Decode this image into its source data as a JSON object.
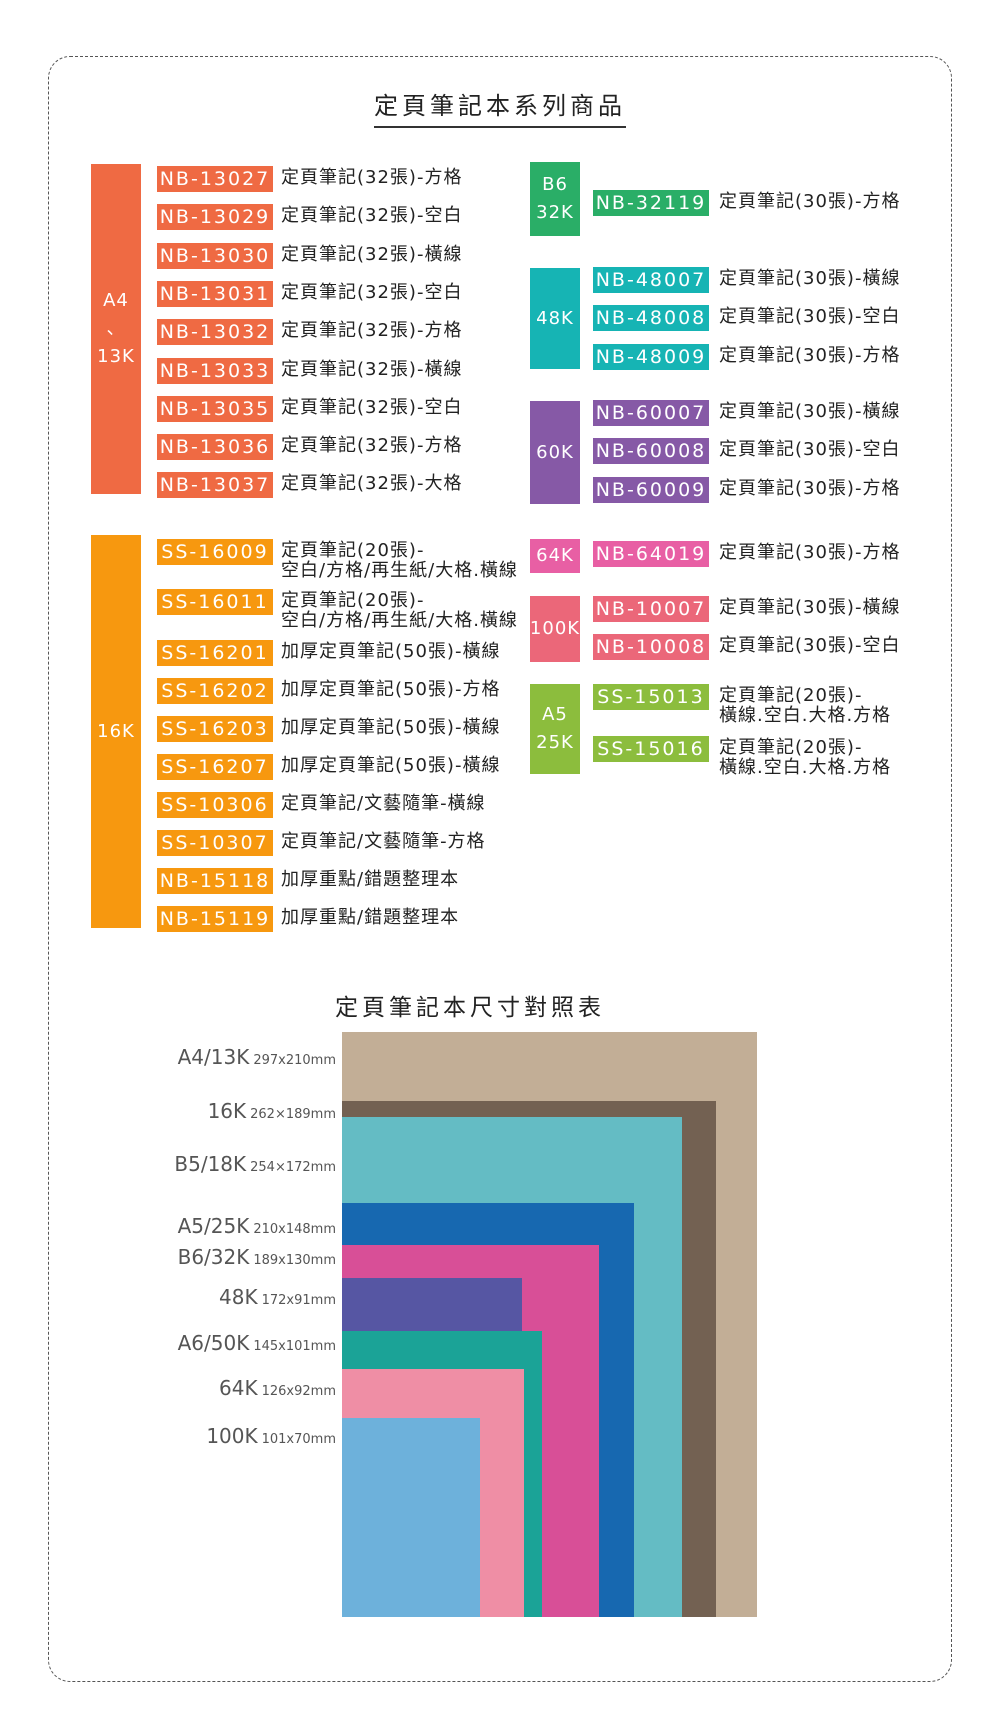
{
  "title": "定頁筆記本系列商品",
  "colors": {
    "a4": "#ef6a43",
    "k16": "#f7980f",
    "b6": "#2aae67",
    "k48": "#16b4b4",
    "k60": "#8659a6",
    "k64": "#e85fa4",
    "k100": "#eb6779",
    "a5": "#8cbd3d"
  },
  "left": {
    "a4": {
      "side": [
        "A4",
        "、",
        "13K"
      ],
      "items": [
        {
          "code": "NB-13027",
          "desc": "定頁筆記(32張)-方格"
        },
        {
          "code": "NB-13029",
          "desc": "定頁筆記(32張)-空白"
        },
        {
          "code": "NB-13030",
          "desc": "定頁筆記(32張)-橫線"
        },
        {
          "code": "NB-13031",
          "desc": "定頁筆記(32張)-空白"
        },
        {
          "code": "NB-13032",
          "desc": "定頁筆記(32張)-方格"
        },
        {
          "code": "NB-13033",
          "desc": "定頁筆記(32張)-橫線"
        },
        {
          "code": "NB-13035",
          "desc": "定頁筆記(32張)-空白"
        },
        {
          "code": "NB-13036",
          "desc": "定頁筆記(32張)-方格"
        },
        {
          "code": "NB-13037",
          "desc": "定頁筆記(32張)-大格"
        }
      ]
    },
    "k16": {
      "side": "16K",
      "items": [
        {
          "code": "SS-16009",
          "desc": "定頁筆記(20張)-",
          "desc2": "空白/方格/再生紙/大格.橫線"
        },
        {
          "code": "SS-16011",
          "desc": "定頁筆記(20張)-",
          "desc2": "空白/方格/再生紙/大格.橫線"
        },
        {
          "code": "SS-16201",
          "desc": "加厚定頁筆記(50張)-橫線"
        },
        {
          "code": "SS-16202",
          "desc": "加厚定頁筆記(50張)-方格"
        },
        {
          "code": "SS-16203",
          "desc": "加厚定頁筆記(50張)-橫線"
        },
        {
          "code": "SS-16207",
          "desc": "加厚定頁筆記(50張)-橫線"
        },
        {
          "code": "SS-10306",
          "desc": "定頁筆記/文藝隨筆-橫線"
        },
        {
          "code": "SS-10307",
          "desc": "定頁筆記/文藝隨筆-方格"
        },
        {
          "code": "NB-15118",
          "desc": "加厚重點/錯題整理本"
        },
        {
          "code": "NB-15119",
          "desc": "加厚重點/錯題整理本"
        }
      ]
    }
  },
  "right": {
    "b6": {
      "side": [
        "B6",
        "32K"
      ],
      "items": [
        {
          "code": "NB-32119",
          "desc": "定頁筆記(30張)-方格"
        }
      ]
    },
    "k48": {
      "side": "48K",
      "items": [
        {
          "code": "NB-48007",
          "desc": "定頁筆記(30張)-橫線"
        },
        {
          "code": "NB-48008",
          "desc": "定頁筆記(30張)-空白"
        },
        {
          "code": "NB-48009",
          "desc": "定頁筆記(30張)-方格"
        }
      ]
    },
    "k60": {
      "side": "60K",
      "items": [
        {
          "code": "NB-60007",
          "desc": "定頁筆記(30張)-橫線"
        },
        {
          "code": "NB-60008",
          "desc": "定頁筆記(30張)-空白"
        },
        {
          "code": "NB-60009",
          "desc": "定頁筆記(30張)-方格"
        }
      ]
    },
    "k64": {
      "side": "64K",
      "items": [
        {
          "code": "NB-64019",
          "desc": "定頁筆記(30張)-方格"
        }
      ]
    },
    "k100": {
      "side": "100K",
      "items": [
        {
          "code": "NB-10007",
          "desc": "定頁筆記(30張)-橫線"
        },
        {
          "code": "NB-10008",
          "desc": "定頁筆記(30張)-空白"
        }
      ]
    },
    "a5": {
      "side": [
        "A5",
        "25K"
      ],
      "items": [
        {
          "code": "SS-15013",
          "desc": "定頁筆記(20張)-",
          "desc2": "橫線.空白.大格.方格"
        },
        {
          "code": "SS-15016",
          "desc": "定頁筆記(20張)-",
          "desc2": "橫線.空白.大格.方格"
        }
      ]
    }
  },
  "size_chart": {
    "title": "定頁筆記本尺寸對照表",
    "sizes": [
      {
        "name": "A4/13K",
        "dim": "297x210mm",
        "color": "#c2ae96"
      },
      {
        "name": "16K",
        "dim": "262×189mm",
        "color": "#736152"
      },
      {
        "name": "B5/18K",
        "dim": "254×172mm",
        "color": "#64bcc4"
      },
      {
        "name": "A5/25K",
        "dim": "210x148mm",
        "color": "#1768b0"
      },
      {
        "name": "B6/32K",
        "dim": "189x130mm",
        "color": "#d84f97"
      },
      {
        "name": "48K",
        "dim": "172x91mm",
        "color": "#5656a3"
      },
      {
        "name": "A6/50K",
        "dim": "145x101mm",
        "color": "#1ba397"
      },
      {
        "name": "64K",
        "dim": "126x92mm",
        "color": "#ef8ea5"
      },
      {
        "name": "100K",
        "dim": "101x70mm",
        "color": "#6db1db"
      }
    ]
  }
}
